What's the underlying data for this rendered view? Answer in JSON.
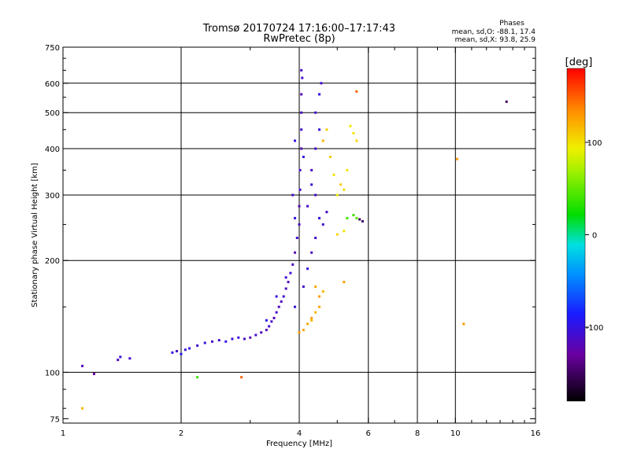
{
  "chart_data": {
    "type": "scatter",
    "title": "Tromsø 20170724 17:16:00–17:17:43",
    "subtitle": "RwPretec (8p)",
    "xlabel": "Frequency [MHz]",
    "ylabel": "Stationary phase Virtual Height [km]",
    "x_scale": "log",
    "y_scale": "log",
    "xlim": [
      1,
      16
    ],
    "ylim": [
      73,
      750
    ],
    "x_ticks": [
      1,
      2,
      4,
      6,
      8,
      10,
      16
    ],
    "x_tick_labels": [
      "1",
      "2",
      "4",
      "6",
      "8",
      "10",
      "16"
    ],
    "y_ticks": [
      75,
      100,
      200,
      300,
      400,
      500,
      600,
      750
    ],
    "y_tick_labels": [
      "75",
      "100",
      "200",
      "300",
      "400",
      "500",
      "600",
      "750"
    ],
    "x_minor_ticks": [
      3,
      5,
      7,
      9,
      11,
      12,
      13,
      14,
      15
    ],
    "y_minor_ticks": [
      80,
      90,
      150,
      250,
      350,
      450,
      550,
      650,
      700
    ],
    "grid": true,
    "grid_x": [
      2,
      4,
      6,
      8,
      10
    ],
    "grid_y": [
      100,
      200,
      300,
      400,
      500,
      600
    ],
    "stats": {
      "header": "Phases",
      "line_o": "mean, sd,O: -88.1, 17.4",
      "line_x": "mean, sd,X:  93.8, 25.9"
    },
    "colorbar": {
      "label": "[deg]",
      "min": -180,
      "max": 180,
      "ticks": [
        100,
        0,
        -100
      ],
      "tick_labels": [
        "100",
        "0",
        "-100"
      ]
    },
    "points": [
      [
        1.12,
        104,
        -120
      ],
      [
        1.2,
        99,
        -130
      ],
      [
        1.38,
        108,
        -115
      ],
      [
        1.4,
        110,
        -105
      ],
      [
        1.48,
        109,
        -110
      ],
      [
        1.12,
        80,
        120
      ],
      [
        2.2,
        97,
        40
      ],
      [
        2.85,
        97,
        150
      ],
      [
        1.9,
        113,
        -100
      ],
      [
        1.95,
        114,
        -110
      ],
      [
        2.0,
        112,
        -95
      ],
      [
        2.05,
        115,
        -105
      ],
      [
        2.1,
        116,
        -100
      ],
      [
        2.2,
        118,
        -110
      ],
      [
        2.3,
        120,
        -105
      ],
      [
        2.4,
        121,
        -115
      ],
      [
        2.5,
        122,
        -110
      ],
      [
        2.6,
        121,
        -100
      ],
      [
        2.7,
        123,
        -110
      ],
      [
        2.8,
        124,
        -105
      ],
      [
        2.9,
        123,
        -115
      ],
      [
        3.0,
        124,
        -120
      ],
      [
        3.1,
        126,
        -110
      ],
      [
        3.2,
        128,
        -115
      ],
      [
        3.3,
        130,
        -120
      ],
      [
        3.35,
        133,
        -110
      ],
      [
        3.4,
        137,
        -115
      ],
      [
        3.45,
        140,
        -120
      ],
      [
        3.5,
        145,
        -110
      ],
      [
        3.55,
        150,
        -115
      ],
      [
        3.6,
        155,
        -120
      ],
      [
        3.65,
        160,
        -110
      ],
      [
        3.7,
        168,
        -115
      ],
      [
        3.75,
        175,
        -120
      ],
      [
        3.8,
        185,
        -110
      ],
      [
        3.85,
        195,
        -115
      ],
      [
        3.9,
        210,
        -120
      ],
      [
        3.95,
        230,
        -110
      ],
      [
        4.0,
        250,
        -115
      ],
      [
        4.0,
        280,
        -120
      ],
      [
        4.02,
        310,
        -110
      ],
      [
        4.02,
        350,
        -115
      ],
      [
        4.05,
        400,
        -120
      ],
      [
        4.05,
        450,
        -110
      ],
      [
        4.05,
        500,
        -115
      ],
      [
        4.05,
        560,
        -120
      ],
      [
        4.07,
        620,
        -110
      ],
      [
        4.05,
        650,
        -115
      ],
      [
        3.3,
        138,
        -95
      ],
      [
        3.5,
        160,
        -100
      ],
      [
        3.7,
        180,
        -110
      ],
      [
        3.9,
        150,
        -105
      ],
      [
        4.1,
        170,
        -110
      ],
      [
        4.2,
        190,
        -100
      ],
      [
        4.3,
        210,
        -115
      ],
      [
        4.4,
        230,
        -110
      ],
      [
        4.5,
        260,
        -105
      ],
      [
        4.4,
        300,
        -110
      ],
      [
        4.3,
        350,
        -115
      ],
      [
        4.4,
        400,
        -110
      ],
      [
        4.5,
        450,
        -105
      ],
      [
        4.4,
        500,
        -110
      ],
      [
        4.5,
        560,
        -100
      ],
      [
        4.55,
        600,
        -110
      ],
      [
        4.2,
        280,
        -115
      ],
      [
        4.3,
        320,
        -110
      ],
      [
        4.1,
        380,
        -105
      ],
      [
        3.9,
        420,
        -100
      ],
      [
        3.85,
        300,
        -110
      ],
      [
        3.9,
        260,
        -105
      ],
      [
        4.6,
        250,
        -110
      ],
      [
        4.7,
        270,
        -110
      ],
      [
        4.1,
        130,
        130
      ],
      [
        4.2,
        135,
        125
      ],
      [
        4.3,
        140,
        130
      ],
      [
        4.4,
        145,
        120
      ],
      [
        4.5,
        150,
        125
      ],
      [
        4.5,
        160,
        130
      ],
      [
        4.6,
        165,
        120
      ],
      [
        4.4,
        170,
        125
      ],
      [
        4.3,
        138,
        120
      ],
      [
        4.0,
        128,
        130
      ],
      [
        4.6,
        420,
        120
      ],
      [
        4.7,
        450,
        110
      ],
      [
        4.8,
        380,
        110
      ],
      [
        4.9,
        340,
        100
      ],
      [
        5.0,
        300,
        95
      ],
      [
        5.1,
        320,
        110
      ],
      [
        5.2,
        310,
        105
      ],
      [
        5.3,
        350,
        100
      ],
      [
        5.5,
        440,
        100
      ],
      [
        5.6,
        420,
        105
      ],
      [
        5.4,
        460,
        100
      ],
      [
        5.2,
        240,
        100
      ],
      [
        5.0,
        235,
        105
      ],
      [
        5.3,
        260,
        40
      ],
      [
        5.5,
        265,
        40
      ],
      [
        5.6,
        260,
        45
      ],
      [
        5.7,
        258,
        -150
      ],
      [
        5.8,
        255,
        -150
      ],
      [
        5.6,
        570,
        150
      ],
      [
        5.2,
        175,
        130
      ],
      [
        10.1,
        375,
        130
      ],
      [
        10.5,
        135,
        130
      ],
      [
        13.5,
        535,
        -150
      ]
    ]
  }
}
